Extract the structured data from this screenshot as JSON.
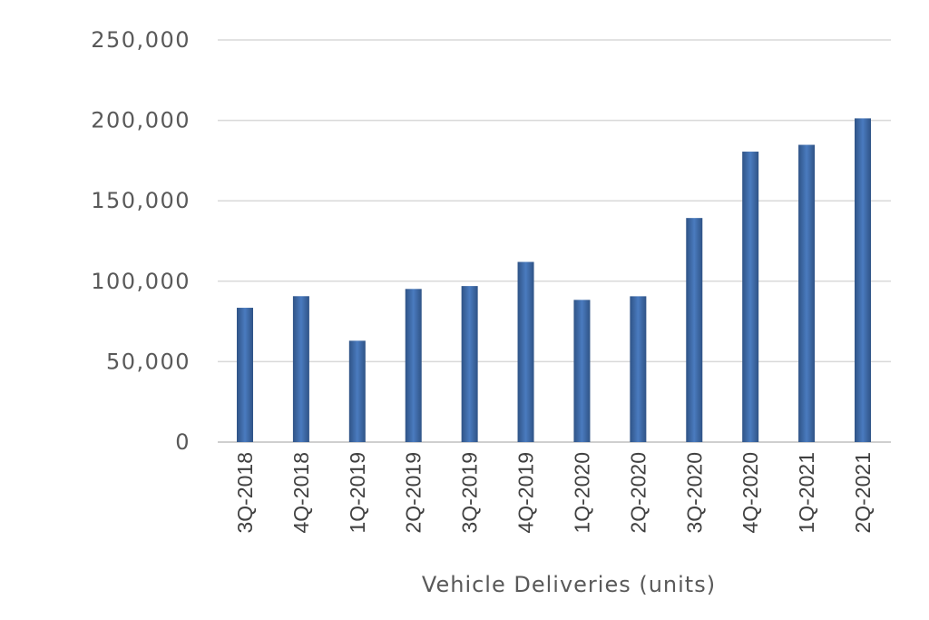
{
  "chart_data": {
    "type": "bar",
    "title": "",
    "xlabel": "Vehicle Deliveries (units)",
    "ylabel": "",
    "ylim": [
      0,
      250000
    ],
    "yticks": [
      0,
      50000,
      100000,
      150000,
      200000,
      250000
    ],
    "ytick_labels": [
      "0",
      "50,000",
      "100,000",
      "150,000",
      "200,000",
      "250,000"
    ],
    "grid": true,
    "legend": "none",
    "categories": [
      "3Q-2018",
      "4Q-2018",
      "1Q-2019",
      "2Q-2019",
      "3Q-2019",
      "4Q-2019",
      "1Q-2020",
      "2Q-2020",
      "3Q-2020",
      "4Q-2020",
      "1Q-2021",
      "2Q-2021"
    ],
    "values": [
      83500,
      90700,
      63000,
      95200,
      97000,
      112000,
      88400,
      90650,
      139300,
      180570,
      184800,
      201250
    ],
    "colors": {
      "bar_edge": "#2f5386",
      "bar_center": "#4a7bbf"
    }
  }
}
